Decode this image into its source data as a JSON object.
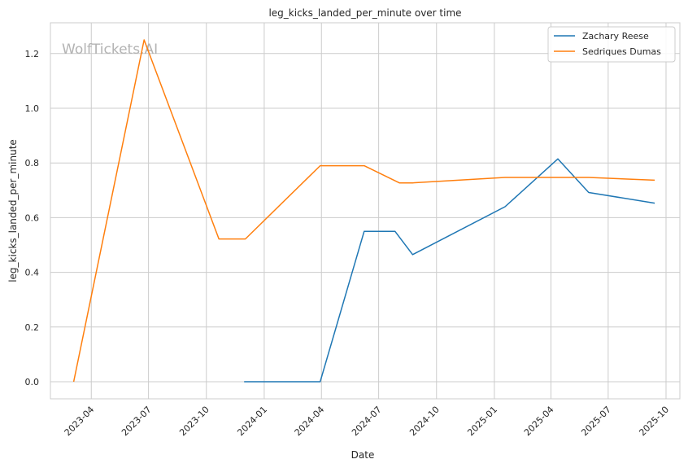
{
  "chart_data": {
    "type": "line",
    "title": "leg_kicks_landed_per_minute over time",
    "xlabel": "Date",
    "ylabel": "leg_kicks_landed_per_minute",
    "watermark": "WolfTickets.AI",
    "x_range": [
      "2023-01-26",
      "2025-10-23"
    ],
    "ylim": [
      -0.0625,
      1.3125
    ],
    "x_ticks": [
      "2023-04",
      "2023-07",
      "2023-10",
      "2024-01",
      "2024-04",
      "2024-07",
      "2024-10",
      "2025-01",
      "2025-04",
      "2025-07",
      "2025-10"
    ],
    "y_ticks": [
      "0.0",
      "0.2",
      "0.4",
      "0.6",
      "0.8",
      "1.0",
      "1.2"
    ],
    "grid": true,
    "legend_position": "top-right",
    "series": [
      {
        "name": "Zachary Reese",
        "color": "#1f77b4",
        "points": [
          {
            "x": "2023-11-30",
            "y": 0.0
          },
          {
            "x": "2024-03-30",
            "y": 0.0
          },
          {
            "x": "2024-06-08",
            "y": 0.55
          },
          {
            "x": "2024-07-27",
            "y": 0.55
          },
          {
            "x": "2024-08-24",
            "y": 0.465
          },
          {
            "x": "2025-01-18",
            "y": 0.64
          },
          {
            "x": "2025-04-12",
            "y": 0.815
          },
          {
            "x": "2025-05-31",
            "y": 0.692
          },
          {
            "x": "2025-09-13",
            "y": 0.653
          }
        ]
      },
      {
        "name": "Sedriques Dumas",
        "color": "#ff7f0e",
        "points": [
          {
            "x": "2023-03-04",
            "y": 0.0
          },
          {
            "x": "2023-06-24",
            "y": 1.25
          },
          {
            "x": "2023-10-21",
            "y": 0.522
          },
          {
            "x": "2023-12-02",
            "y": 0.522
          },
          {
            "x": "2024-03-30",
            "y": 0.79
          },
          {
            "x": "2024-06-08",
            "y": 0.79
          },
          {
            "x": "2024-08-03",
            "y": 0.727
          },
          {
            "x": "2024-08-24",
            "y": 0.727
          },
          {
            "x": "2025-01-18",
            "y": 0.747
          },
          {
            "x": "2025-05-31",
            "y": 0.747
          },
          {
            "x": "2025-09-13",
            "y": 0.737
          }
        ]
      }
    ]
  }
}
